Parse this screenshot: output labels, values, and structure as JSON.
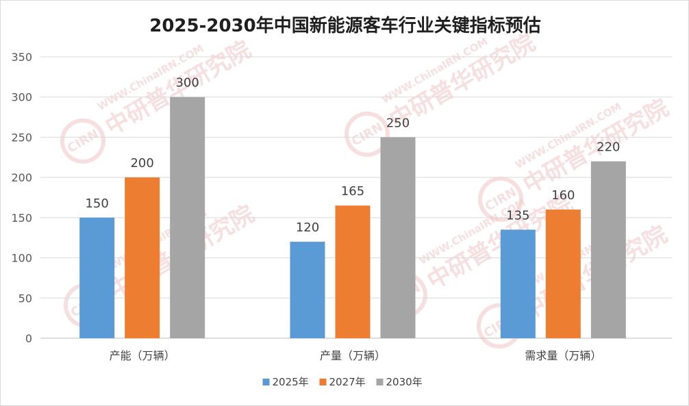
{
  "chart_data": {
    "type": "bar",
    "title": "2025-2030年中国新能源客车行业关键指标预估",
    "categories": [
      "产能（万辆）",
      "产量（万辆）",
      "需求量（万辆）"
    ],
    "series": [
      {
        "name": "2025年",
        "values": [
          150,
          120,
          135
        ],
        "color": "#5b9bd5"
      },
      {
        "name": "2027年",
        "values": [
          200,
          165,
          160
        ],
        "color": "#ed7d31"
      },
      {
        "name": "2030年",
        "values": [
          300,
          250,
          220
        ],
        "color": "#a5a5a5"
      }
    ],
    "ylim": [
      0,
      350
    ],
    "yticks": [
      0,
      50,
      100,
      150,
      200,
      250,
      300,
      350
    ],
    "grid": true,
    "legend": "bottom",
    "xlabel": "",
    "ylabel": ""
  },
  "watermark": {
    "logo_text": "CIRN",
    "name_text": "中研普华研究院",
    "url_text": "WWW.ChinaIRN.COM"
  }
}
